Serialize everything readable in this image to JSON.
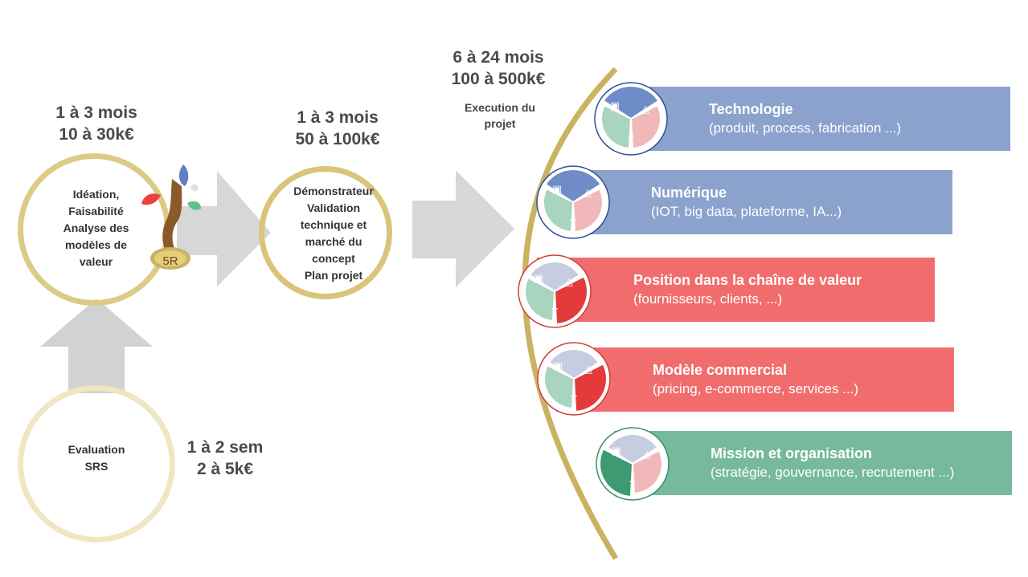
{
  "phases": {
    "ideation": {
      "duration": "1 à 3 mois",
      "cost": "10 à 30k€",
      "lines": [
        "Idéation,",
        "Faisabilité",
        "Analyse des",
        "modèles de",
        "valeur"
      ]
    },
    "demo": {
      "duration": "1 à 3 mois",
      "cost": "50 à 100k€",
      "lines": [
        "Démonstrateur",
        "Validation",
        "technique et",
        "marché du",
        "concept",
        "Plan projet"
      ]
    },
    "execution": {
      "duration": "6 à 24 mois",
      "cost": "100 à 500k€",
      "lines": [
        "Execution du",
        "projet"
      ]
    },
    "evaluation": {
      "duration": "1 à 2 sem",
      "cost": "2 à 5k€",
      "lines": [
        "Evaluation",
        "SRS"
      ]
    }
  },
  "logo": {
    "label": "5R"
  },
  "bars": [
    {
      "title": "Technologie",
      "subtitle": "(produit, process, fabrication ...)"
    },
    {
      "title": "Numérique",
      "subtitle": "(IOT, big data, plateforme, IA...)"
    },
    {
      "title": "Position dans la chaîne de valeur",
      "subtitle": "(fournisseurs, clients, ...)"
    },
    {
      "title": "Modèle commercial",
      "subtitle": "(pricing, e-commerce, services ...)"
    },
    {
      "title": "Mission et organisation",
      "subtitle": "(stratégie, gouvernance, recrutement ...)"
    }
  ],
  "colors": {
    "gold": "#d4bf6e",
    "blue": "#8aa2cc",
    "red": "#f06c6c",
    "green": "#72b79a",
    "arrow": "#cdcdcd"
  }
}
